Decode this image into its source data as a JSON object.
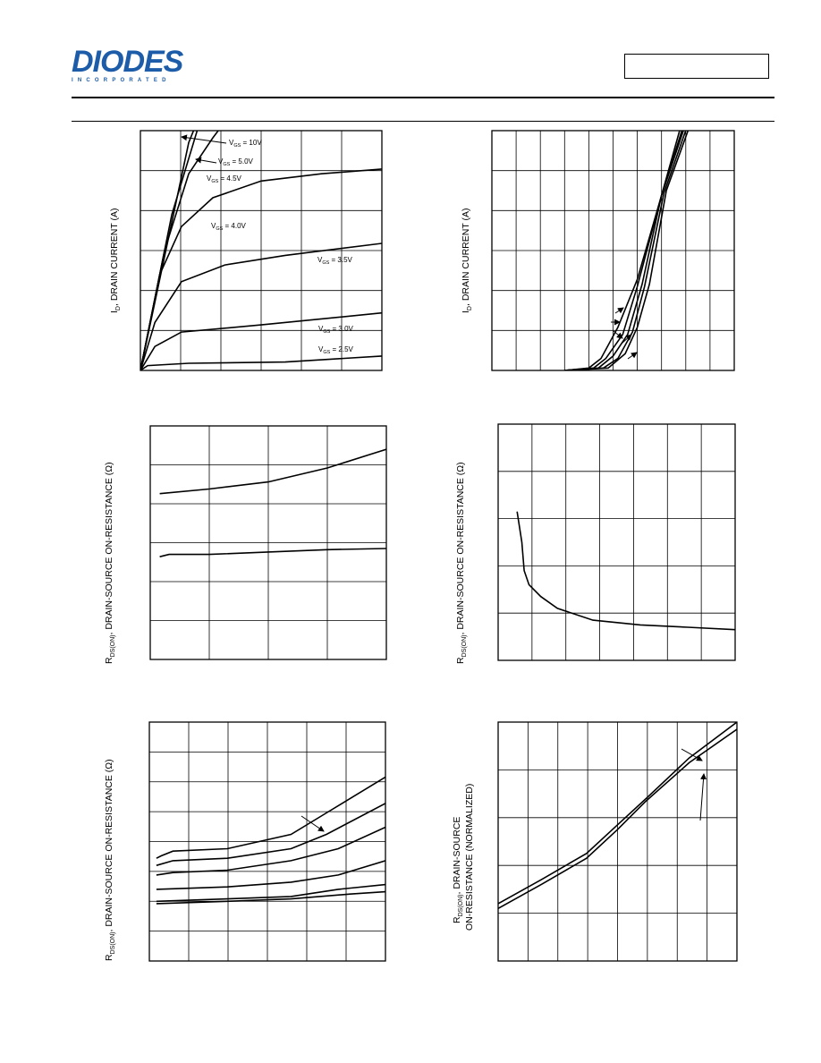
{
  "header": {
    "logo_text": "DIODES",
    "logo_subtext": "INCORPORATED",
    "part_number": ""
  },
  "chart_data": [
    {
      "id": "c1",
      "type": "line",
      "grid_rows": 6,
      "grid_cols": 6,
      "ylabel_prefix": "I",
      "ylabel_sub": "D",
      "ylabel_rest": ", DRAIN CURRENT (A)",
      "xlim": [
        0,
        1
      ],
      "ylim": [
        0,
        1
      ],
      "series": [
        {
          "name": "VGS = 10V",
          "points": [
            [
              0,
              0
            ],
            [
              0.2,
              0.95
            ],
            [
              0.3,
              1.2
            ]
          ]
        },
        {
          "name": "VGS = 5.0V",
          "points": [
            [
              0,
              0
            ],
            [
              0.13,
              0.65
            ],
            [
              0.25,
              1.05
            ]
          ]
        },
        {
          "name": "VGS = 4.5V",
          "points": [
            [
              0,
              0
            ],
            [
              0.1,
              0.5
            ],
            [
              0.2,
              0.82
            ],
            [
              0.3,
              0.97
            ],
            [
              0.36,
              1.05
            ]
          ]
        },
        {
          "name": "VGS = 4.0V",
          "points": [
            [
              0,
              0
            ],
            [
              0.08,
              0.4
            ],
            [
              0.17,
              0.6
            ],
            [
              0.3,
              0.72
            ],
            [
              0.5,
              0.79
            ],
            [
              0.75,
              0.82
            ],
            [
              1,
              0.84
            ]
          ]
        },
        {
          "name": "VGS = 3.5V",
          "points": [
            [
              0,
              0
            ],
            [
              0.06,
              0.2
            ],
            [
              0.17,
              0.37
            ],
            [
              0.35,
              0.44
            ],
            [
              0.6,
              0.48
            ],
            [
              1,
              0.53
            ]
          ]
        },
        {
          "name": "VGS = 3.0V",
          "points": [
            [
              0,
              0
            ],
            [
              0.06,
              0.1
            ],
            [
              0.17,
              0.16
            ],
            [
              0.5,
              0.19
            ],
            [
              1,
              0.24
            ]
          ]
        },
        {
          "name": "VGS = 2.5V",
          "points": [
            [
              0,
              0
            ],
            [
              0.03,
              0.02
            ],
            [
              0.2,
              0.03
            ],
            [
              0.6,
              0.035
            ],
            [
              1,
              0.06
            ]
          ]
        }
      ],
      "labels": [
        {
          "main": "V",
          "sub": "GS",
          "rest": " = 10V"
        },
        {
          "main": "V",
          "sub": "GS",
          "rest": " = 5.0V"
        },
        {
          "main": "V",
          "sub": "GS",
          "rest": " = 4.5V"
        },
        {
          "main": "V",
          "sub": "GS",
          "rest": " = 4.0V"
        },
        {
          "main": "V",
          "sub": "GS",
          "rest": " = 3.5V"
        },
        {
          "main": "V",
          "sub": "GS",
          "rest": " = 3.0V"
        },
        {
          "main": "V",
          "sub": "GS",
          "rest": " = 2.5V"
        }
      ]
    },
    {
      "id": "c2",
      "type": "line",
      "grid_rows": 6,
      "grid_cols": 10,
      "ylabel_prefix": "I",
      "ylabel_sub": "D",
      "ylabel_rest": ", DRAIN CURRENT (A)",
      "xlim": [
        0,
        1
      ],
      "ylim": [
        0,
        1
      ],
      "series": [
        {
          "name": "",
          "points": [
            [
              0.3,
              0
            ],
            [
              0.4,
              0.01
            ],
            [
              0.45,
              0.05
            ],
            [
              0.52,
              0.18
            ],
            [
              0.6,
              0.38
            ],
            [
              0.7,
              0.73
            ],
            [
              0.78,
              1.02
            ]
          ]
        },
        {
          "name": "",
          "points": [
            [
              0.3,
              0
            ],
            [
              0.42,
              0.01
            ],
            [
              0.47,
              0.05
            ],
            [
              0.54,
              0.15
            ],
            [
              0.6,
              0.35
            ],
            [
              0.7,
              0.73
            ],
            [
              0.79,
              1.02
            ]
          ]
        },
        {
          "name": "",
          "points": [
            [
              0.3,
              0
            ],
            [
              0.44,
              0.01
            ],
            [
              0.5,
              0.06
            ],
            [
              0.56,
              0.15
            ],
            [
              0.62,
              0.36
            ],
            [
              0.7,
              0.73
            ],
            [
              0.8,
              1.03
            ]
          ]
        },
        {
          "name": "",
          "points": [
            [
              0.3,
              0
            ],
            [
              0.46,
              0.01
            ],
            [
              0.52,
              0.05
            ],
            [
              0.58,
              0.16
            ],
            [
              0.63,
              0.35
            ],
            [
              0.71,
              0.74
            ],
            [
              0.81,
              1.03
            ]
          ]
        },
        {
          "name": "",
          "points": [
            [
              0.3,
              0
            ],
            [
              0.48,
              0.01
            ],
            [
              0.55,
              0.07
            ],
            [
              0.6,
              0.18
            ],
            [
              0.65,
              0.36
            ],
            [
              0.72,
              0.75
            ],
            [
              0.82,
              1.03
            ]
          ]
        }
      ],
      "labels": []
    },
    {
      "id": "c3",
      "type": "line",
      "grid_rows": 6,
      "grid_cols": 4,
      "ylabel_prefix": "R",
      "ylabel_sub": "DS(ON)",
      "ylabel_rest": ", DRAIN-SOURCE ON-RESISTANCE (Ω)",
      "xlim": [
        0,
        1
      ],
      "ylim": [
        0,
        1
      ],
      "series": [
        {
          "name": "",
          "points": [
            [
              0.04,
              0.71
            ],
            [
              0.25,
              0.73
            ],
            [
              0.5,
              0.76
            ],
            [
              0.75,
              0.82
            ],
            [
              1,
              0.9
            ]
          ]
        },
        {
          "name": "",
          "points": [
            [
              0.04,
              0.44
            ],
            [
              0.08,
              0.45
            ],
            [
              0.25,
              0.45
            ],
            [
              0.5,
              0.46
            ],
            [
              0.75,
              0.47
            ],
            [
              1,
              0.475
            ]
          ]
        }
      ],
      "labels": []
    },
    {
      "id": "c4",
      "type": "line",
      "grid_rows": 5,
      "grid_cols": 7,
      "ylabel_prefix": "R",
      "ylabel_sub": "DS(ON)",
      "ylabel_rest": ", DRAIN-SOURCE ON-RESISTANCE (Ω)",
      "xlim": [
        0,
        1
      ],
      "ylim": [
        0,
        1
      ],
      "series": [
        {
          "name": "",
          "points": [
            [
              0.08,
              0.63
            ],
            [
              0.1,
              0.5
            ],
            [
              0.11,
              0.38
            ],
            [
              0.13,
              0.32
            ],
            [
              0.18,
              0.27
            ],
            [
              0.25,
              0.22
            ],
            [
              0.4,
              0.17
            ],
            [
              0.6,
              0.15
            ],
            [
              0.8,
              0.14
            ],
            [
              1,
              0.13
            ]
          ]
        }
      ],
      "labels": []
    },
    {
      "id": "c5",
      "type": "line",
      "grid_rows": 8,
      "grid_cols": 6,
      "ylabel_prefix": "R",
      "ylabel_sub": "DS(ON)",
      "ylabel_rest": ", DRAIN-SOURCE ON-RESISTANCE (Ω)",
      "xlim": [
        0,
        1
      ],
      "ylim": [
        0,
        1
      ],
      "series": [
        {
          "name": "",
          "points": [
            [
              0.03,
              0.43
            ],
            [
              0.05,
              0.44
            ],
            [
              0.1,
              0.46
            ],
            [
              0.33,
              0.47
            ],
            [
              0.6,
              0.53
            ],
            [
              0.75,
              0.62
            ],
            [
              1,
              0.77
            ]
          ]
        },
        {
          "name": "",
          "points": [
            [
              0.03,
              0.4
            ],
            [
              0.1,
              0.42
            ],
            [
              0.33,
              0.43
            ],
            [
              0.6,
              0.47
            ],
            [
              0.75,
              0.53
            ],
            [
              1,
              0.66
            ]
          ]
        },
        {
          "name": "",
          "points": [
            [
              0.03,
              0.36
            ],
            [
              0.1,
              0.37
            ],
            [
              0.33,
              0.38
            ],
            [
              0.6,
              0.42
            ],
            [
              0.8,
              0.47
            ],
            [
              1,
              0.56
            ]
          ]
        },
        {
          "name": "",
          "points": [
            [
              0.03,
              0.3
            ],
            [
              0.33,
              0.31
            ],
            [
              0.6,
              0.33
            ],
            [
              0.8,
              0.36
            ],
            [
              1,
              0.42
            ]
          ]
        },
        {
          "name": "",
          "points": [
            [
              0.03,
              0.25
            ],
            [
              0.33,
              0.26
            ],
            [
              0.6,
              0.27
            ],
            [
              0.8,
              0.3
            ],
            [
              1,
              0.32
            ]
          ]
        },
        {
          "name": "",
          "points": [
            [
              0.03,
              0.24
            ],
            [
              0.33,
              0.25
            ],
            [
              0.6,
              0.26
            ],
            [
              0.85,
              0.28
            ],
            [
              1,
              0.29
            ]
          ]
        }
      ],
      "labels": []
    },
    {
      "id": "c6",
      "type": "line",
      "grid_rows": 5,
      "grid_cols": 8,
      "ylabel_prefix": "R",
      "ylabel_sub": "DS(ON)",
      "ylabel_rest": ", DRAIN-SOURCE",
      "ylabel_line2": "ON-RESISTANCE (NORMALIZED)",
      "xlim": [
        0,
        1
      ],
      "ylim": [
        0,
        1
      ],
      "series": [
        {
          "name": "",
          "points": [
            [
              0,
              0.24
            ],
            [
              0.18,
              0.34
            ],
            [
              0.37,
              0.45
            ],
            [
              0.5,
              0.57
            ],
            [
              0.62,
              0.68
            ],
            [
              0.8,
              0.85
            ],
            [
              1,
              1
            ]
          ]
        },
        {
          "name": "",
          "points": [
            [
              0,
              0.22
            ],
            [
              0.18,
              0.32
            ],
            [
              0.37,
              0.43
            ],
            [
              0.5,
              0.55
            ],
            [
              0.62,
              0.67
            ],
            [
              0.8,
              0.83
            ],
            [
              1,
              0.97
            ]
          ]
        }
      ],
      "labels": []
    }
  ]
}
